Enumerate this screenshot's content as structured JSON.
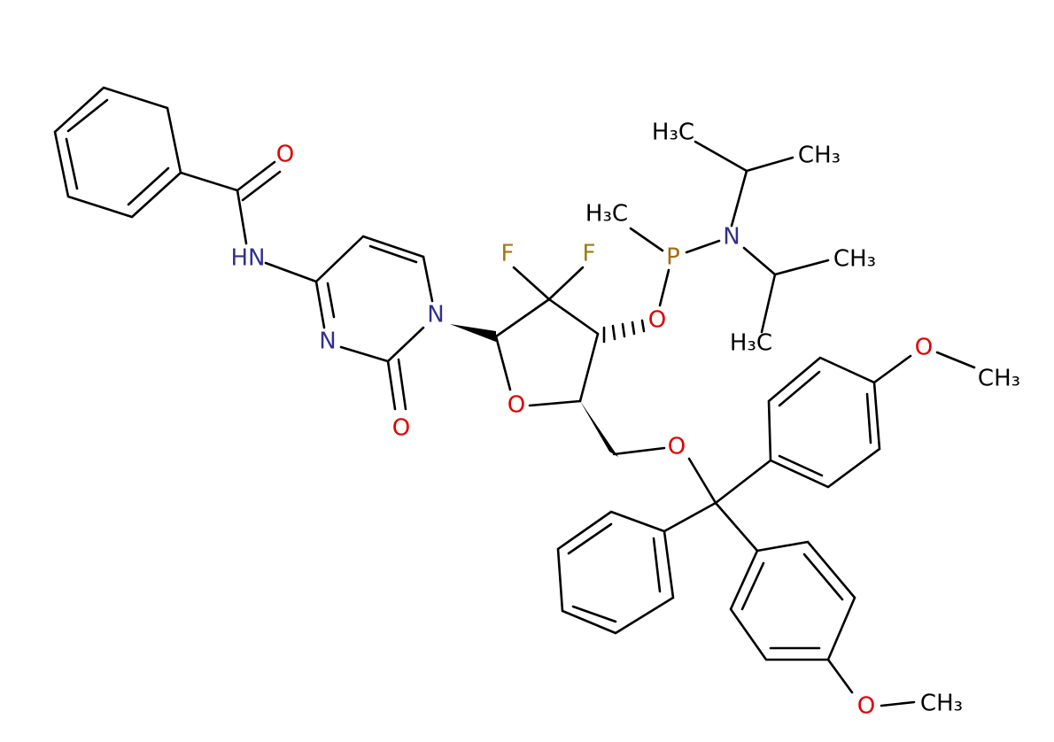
{
  "atoms": [
    {
      "label": "O"
    },
    {
      "label": "HN"
    },
    {
      "label": "N"
    },
    {
      "label": "N"
    },
    {
      "label": "O"
    },
    {
      "label": "F"
    },
    {
      "label": "F"
    },
    {
      "label": "O"
    },
    {
      "label": "O"
    },
    {
      "label": "P"
    },
    {
      "label": "H₃C"
    },
    {
      "label": "N"
    },
    {
      "label": "H₃C"
    },
    {
      "label": "CH₃"
    },
    {
      "label": "CH₃"
    },
    {
      "label": "H₃C"
    },
    {
      "label": "O"
    },
    {
      "label": "O"
    },
    {
      "label": "CH₃"
    },
    {
      "label": "O"
    },
    {
      "label": "CH₃"
    }
  ]
}
